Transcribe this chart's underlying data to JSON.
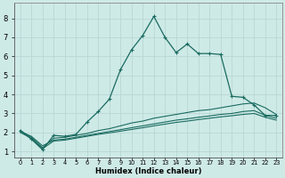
{
  "xlabel": "Humidex (Indice chaleur)",
  "bg_color": "#ceeae7",
  "grid_color": "#b8d8d5",
  "line_color": "#1a6b60",
  "xlim": [
    -0.5,
    23.5
  ],
  "ylim": [
    0.7,
    8.8
  ],
  "yticks": [
    1,
    2,
    3,
    4,
    5,
    6,
    7,
    8
  ],
  "xtick_labels": [
    "0",
    "1",
    "2",
    "3",
    "4",
    "5",
    "6",
    "7",
    "8",
    "9",
    "10",
    "11",
    "12",
    "13",
    "14",
    "15",
    "16",
    "17",
    "18",
    "19",
    "20",
    "21",
    "22",
    "23"
  ],
  "series_main": {
    "x": [
      0,
      1,
      2,
      3,
      4,
      5,
      6,
      7,
      8,
      9,
      10,
      11,
      12,
      13,
      14,
      15,
      16,
      17,
      18,
      19,
      20,
      21,
      22,
      23
    ],
    "y": [
      2.1,
      1.65,
      1.1,
      1.85,
      1.8,
      1.9,
      2.55,
      3.1,
      3.75,
      5.3,
      6.35,
      7.1,
      8.1,
      7.0,
      6.2,
      6.65,
      6.15,
      6.15,
      6.1,
      3.9,
      3.85,
      3.45,
      2.9,
      2.9
    ]
  },
  "series_smooth1": {
    "x": [
      0,
      1,
      2,
      3,
      4,
      5,
      6,
      7,
      8,
      9,
      10,
      11,
      12,
      13,
      14,
      15,
      16,
      17,
      18,
      19,
      20,
      21,
      22,
      23
    ],
    "y": [
      2.1,
      1.75,
      1.2,
      1.7,
      1.75,
      1.85,
      1.95,
      2.1,
      2.2,
      2.35,
      2.5,
      2.6,
      2.75,
      2.85,
      2.95,
      3.05,
      3.15,
      3.2,
      3.3,
      3.4,
      3.5,
      3.55,
      3.3,
      2.95
    ]
  },
  "series_smooth2": {
    "x": [
      0,
      1,
      2,
      3,
      4,
      5,
      6,
      7,
      8,
      9,
      10,
      11,
      12,
      13,
      14,
      15,
      16,
      17,
      18,
      19,
      20,
      21,
      22,
      23
    ],
    "y": [
      2.05,
      1.8,
      1.3,
      1.6,
      1.65,
      1.75,
      1.85,
      1.95,
      2.05,
      2.15,
      2.25,
      2.35,
      2.45,
      2.55,
      2.65,
      2.72,
      2.8,
      2.87,
      2.95,
      3.0,
      3.1,
      3.15,
      2.9,
      2.75
    ]
  },
  "series_smooth3": {
    "x": [
      0,
      1,
      2,
      3,
      4,
      5,
      6,
      7,
      8,
      9,
      10,
      11,
      12,
      13,
      14,
      15,
      16,
      17,
      18,
      19,
      20,
      21,
      22,
      23
    ],
    "y": [
      2.0,
      1.7,
      1.15,
      1.55,
      1.6,
      1.7,
      1.8,
      1.9,
      1.98,
      2.07,
      2.16,
      2.25,
      2.35,
      2.44,
      2.53,
      2.6,
      2.68,
      2.75,
      2.82,
      2.88,
      2.95,
      3.0,
      2.8,
      2.65
    ]
  }
}
